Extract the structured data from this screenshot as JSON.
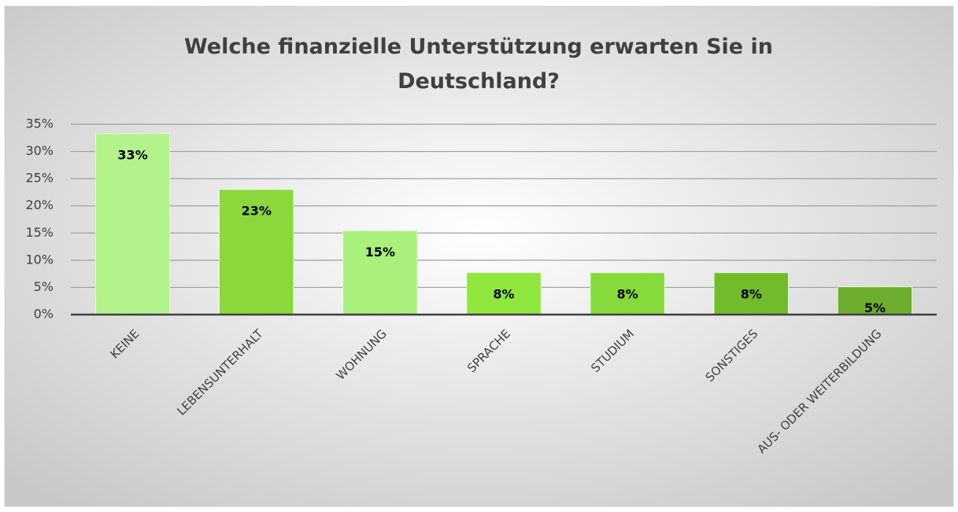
{
  "chart_data": {
    "type": "bar",
    "title": "Welche finanzielle Unterstützung erwarten Sie in Deutschland?",
    "categories": [
      "KEINE",
      "LEBENSUNTERHALT",
      "WOHNUNG",
      "SPRACHE",
      "STUDIUM",
      "SONSTIGES",
      "AUS- ODER WEITERBILDUNG"
    ],
    "values": [
      33.3,
      23,
      15.4,
      7.7,
      7.7,
      7.7,
      5.1
    ],
    "value_labels": [
      "33%",
      "23%",
      "15%",
      "8%",
      "8%",
      "8%",
      "5%"
    ],
    "colors": [
      "#b4f28c",
      "#8ad83c",
      "#a9f07c",
      "#8fe63c",
      "#86da3c",
      "#72bc2c",
      "#6cad2e"
    ],
    "ylim": [
      0,
      35
    ],
    "yticks": [
      {
        "value": 0,
        "label": "0%"
      },
      {
        "value": 5,
        "label": "5%"
      },
      {
        "value": 10,
        "label": "10%"
      },
      {
        "value": 15,
        "label": "15%"
      },
      {
        "value": 20,
        "label": "20%"
      },
      {
        "value": 25,
        "label": "25%"
      },
      {
        "value": 30,
        "label": "30%"
      },
      {
        "value": 35,
        "label": "35%"
      }
    ],
    "grid": true
  }
}
